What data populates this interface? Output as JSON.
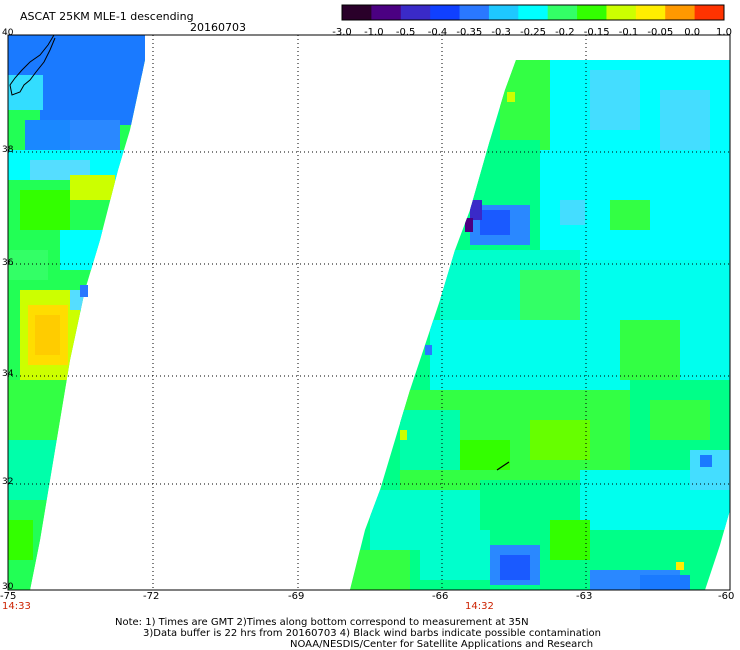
{
  "header": {
    "title": "ASCAT 25KM MLE-1 descending",
    "date": "20160703"
  },
  "colorbar": {
    "labels": [
      "-3.0",
      "-1.0",
      "-0.5",
      "-0.4",
      "-0.35",
      "-0.3",
      "-0.25",
      "-0.2",
      "-0.15",
      "-0.1",
      "-0.05",
      "0.0",
      "1.0"
    ],
    "colors": [
      "#2a002a",
      "#4b0082",
      "#3a2ac8",
      "#1040ff",
      "#2a78ff",
      "#1ec8ff",
      "#00ffff",
      "#33ff66",
      "#33ff00",
      "#ccff00",
      "#ffee00",
      "#ff9900",
      "#ff3300"
    ]
  },
  "axes": {
    "lon_labels": [
      "-75",
      "-72",
      "-69",
      "-66",
      "-63",
      "-60"
    ],
    "lat_labels": [
      "40",
      "38",
      "36",
      "34",
      "32",
      "30"
    ]
  },
  "times": {
    "left": "14:33",
    "right": "14:32"
  },
  "notes": {
    "line1": "Note: 1) Times are GMT 2)Times along bottom correspond to measurement at 35N",
    "line2": "3)Data buffer is 22 hrs from 20160703 4) Black wind barbs indicate possible contamination",
    "line3": "NOAA/NESDIS/Center for Satellite Applications and Research"
  },
  "swaths": {
    "west": {
      "lon_range": [
        -75.0,
        -72.2
      ],
      "lat_range": [
        30.0,
        40.0
      ],
      "dominant_value_range": [
        -0.4,
        -0.05
      ]
    },
    "east": {
      "lon_range": [
        -67.8,
        -60.0
      ],
      "lat_range": [
        30.0,
        39.5
      ],
      "dominant_value_range": [
        -0.4,
        -0.1
      ]
    }
  },
  "chart_data": {
    "type": "heatmap",
    "x_axis": {
      "label": "",
      "range": [
        -75,
        -60
      ],
      "ticks": [
        -75,
        -72,
        -69,
        -66,
        -63,
        -60
      ]
    },
    "y_axis": {
      "label": "",
      "range": [
        30,
        40
      ],
      "ticks": [
        30,
        32,
        34,
        36,
        38,
        40
      ]
    },
    "grid": true,
    "value_scale": [
      -3.0,
      -1.0,
      -0.5,
      -0.4,
      -0.35,
      -0.3,
      -0.25,
      -0.2,
      -0.15,
      -0.1,
      -0.05,
      0.0,
      1.0
    ]
  }
}
